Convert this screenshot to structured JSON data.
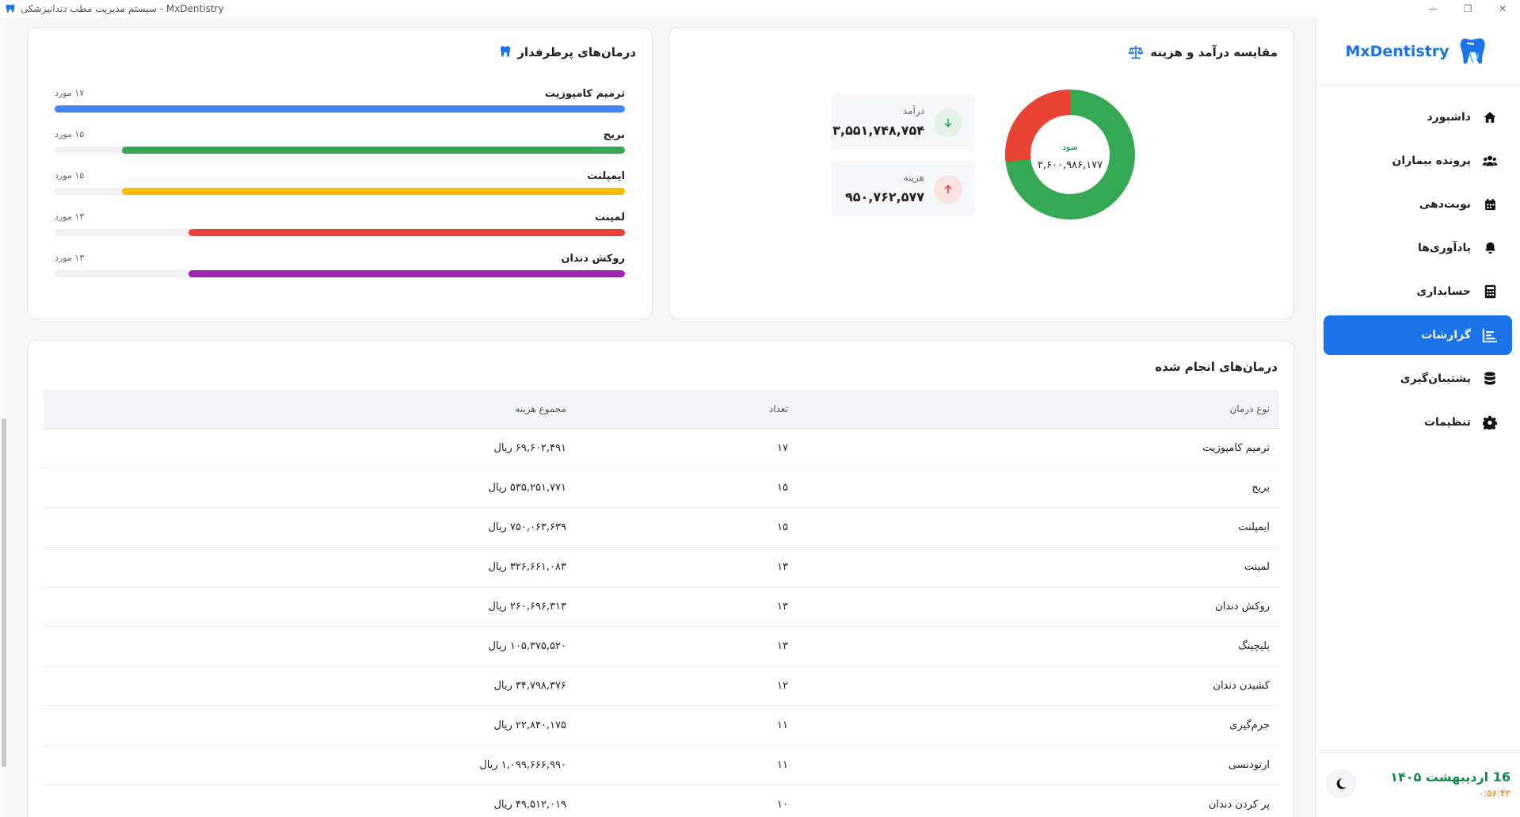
{
  "window": {
    "title": "سیستم مدیریت مطب دندانپزشکی - MxDentistry"
  },
  "sidebar": {
    "brand": "MxDentistry",
    "items": [
      {
        "label": "داشبورد",
        "icon": "home-icon",
        "active": false
      },
      {
        "label": "پرونده بیماران",
        "icon": "users-icon",
        "active": false
      },
      {
        "label": "نوبت‌دهی",
        "icon": "calendar-icon",
        "active": false
      },
      {
        "label": "یادآوری‌ها",
        "icon": "bell-icon",
        "active": false
      },
      {
        "label": "حسابداری",
        "icon": "calculator-icon",
        "active": false
      },
      {
        "label": "گزارشات",
        "icon": "report-chart-icon",
        "active": true
      },
      {
        "label": "پشتیبان‌گیری",
        "icon": "database-icon",
        "active": false
      },
      {
        "label": "تنظیمات",
        "icon": "gear-icon",
        "active": false
      }
    ],
    "footer": {
      "date": "16 اردیبهشت ۱۴۰۵",
      "time": "۰:۵۶:۴۳",
      "theme_toggle_icon": "moon-icon"
    }
  },
  "income_card": {
    "title": "مقایسه درآمد و هزینه",
    "icon": "balance-scale-icon",
    "profit_label": "سود",
    "profit_value": "۲,۶۰۰,۹۸۶,۱۷۷",
    "income_label": "درآمد",
    "income_value": "۳,۵۵۱,۷۴۸,۷۵۴",
    "expense_label": "هزینه",
    "expense_value": "۹۵۰,۷۶۲,۵۷۷",
    "colors": {
      "profit": "#34a853",
      "expense": "#ea4335"
    },
    "donut_fraction_expense": 0.268
  },
  "popular_card": {
    "title": "درمان‌های پرطرفدار",
    "icon": "tooth-icon",
    "bars": [
      {
        "name": "ترمیم کامپوزیت",
        "count": "۱۷ مورد",
        "fraction": 1.0,
        "color": "#4285f4"
      },
      {
        "name": "بریج",
        "count": "۱۵ مورد",
        "fraction": 0.882,
        "color": "#34a853"
      },
      {
        "name": "ایمپلنت",
        "count": "۱۵ مورد",
        "fraction": 0.882,
        "color": "#fbbc04"
      },
      {
        "name": "لمینت",
        "count": "۱۳ مورد",
        "fraction": 0.765,
        "color": "#ea4335"
      },
      {
        "name": "روکش دندان",
        "count": "۱۳ مورد",
        "fraction": 0.765,
        "color": "#9c27b0"
      }
    ]
  },
  "table_card": {
    "title": "درمان‌های انجام شده",
    "headers": {
      "type": "نوع درمان",
      "count": "تعداد",
      "total": "مجموع هزینه"
    },
    "rows": [
      {
        "type": "ترمیم کامپوزیت",
        "count": "۱۷",
        "total": "۶۹,۶۰۲,۴۹۱ ریال"
      },
      {
        "type": "بریج",
        "count": "۱۵",
        "total": "۵۳۵,۲۵۱,۷۷۱ ریال"
      },
      {
        "type": "ایمپلنت",
        "count": "۱۵",
        "total": "۷۵۰,۰۶۳,۶۳۹ ریال"
      },
      {
        "type": "لمینت",
        "count": "۱۳",
        "total": "۳۲۶,۶۶۱,۰۸۳ ریال"
      },
      {
        "type": "روکش دندان",
        "count": "۱۳",
        "total": "۲۶۰,۶۹۶,۳۱۳ ریال"
      },
      {
        "type": "بلیچینگ",
        "count": "۱۳",
        "total": "۱۰۵,۳۷۵,۵۲۰ ریال"
      },
      {
        "type": "کشیدن دندان",
        "count": "۱۲",
        "total": "۳۴,۷۹۸,۳۷۶ ریال"
      },
      {
        "type": "جرم‌گیری",
        "count": "۱۱",
        "total": "۲۲,۸۴۰,۱۷۵ ریال"
      },
      {
        "type": "ارتودنسی",
        "count": "۱۱",
        "total": "۱,۰۹۹,۶۶۶,۹۹۰ ریال"
      },
      {
        "type": "پر کردن دندان",
        "count": "۱۰",
        "total": "۴۹,۵۱۲,۰۱۹ ریال"
      }
    ]
  }
}
